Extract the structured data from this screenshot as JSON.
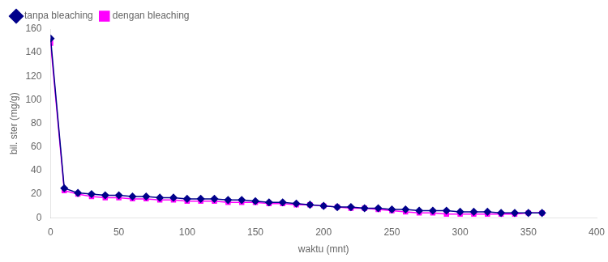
{
  "chart_data": {
    "type": "line",
    "x": [
      0,
      10,
      20,
      30,
      40,
      50,
      60,
      70,
      80,
      90,
      100,
      110,
      120,
      130,
      140,
      150,
      160,
      170,
      180,
      190,
      200,
      210,
      220,
      230,
      240,
      250,
      260,
      270,
      280,
      290,
      300,
      310,
      320,
      330,
      340,
      350,
      360
    ],
    "series": [
      {
        "name": "tanpa bleaching",
        "color": "#00008B",
        "marker": "diamond",
        "values": [
          152,
          25,
          21,
          20,
          19,
          19,
          18,
          18,
          17,
          17,
          16,
          16,
          16,
          15,
          15,
          14,
          13,
          13,
          12,
          11,
          10,
          9,
          9,
          8,
          8,
          7,
          7,
          6,
          6,
          6,
          5,
          5,
          5,
          4,
          4,
          4,
          4
        ]
      },
      {
        "name": "dengan bleaching",
        "color": "#FF00FF",
        "marker": "square",
        "values": [
          148,
          23,
          20,
          18,
          17,
          17,
          16,
          16,
          15,
          15,
          14,
          14,
          14,
          13,
          13,
          13,
          12,
          12,
          11,
          11,
          10,
          9,
          8,
          8,
          7,
          6,
          5,
          4,
          4,
          3,
          3,
          3,
          3,
          3,
          3,
          4,
          4
        ]
      }
    ],
    "xlabel": "waktu (mnt)",
    "ylabel": "bil. ster (mg/g)",
    "xlim": [
      0,
      400
    ],
    "ylim": [
      0,
      160
    ],
    "xticks": [
      0,
      50,
      100,
      150,
      200,
      250,
      300,
      350,
      400
    ],
    "yticks": [
      0,
      20,
      40,
      60,
      80,
      100,
      120,
      140,
      160
    ],
    "grid": false,
    "legend": "upper left"
  }
}
